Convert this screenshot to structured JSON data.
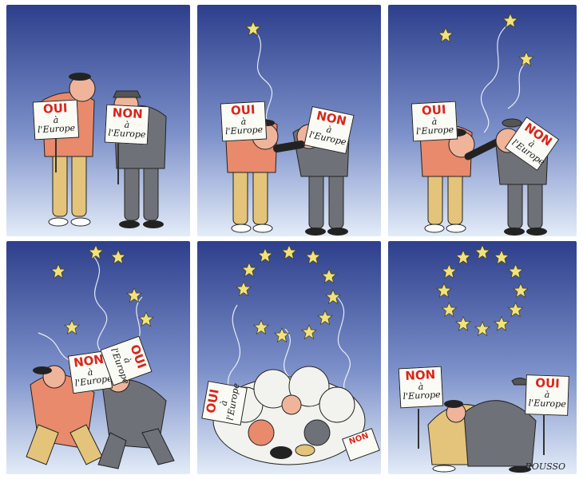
{
  "signs": {
    "oui": {
      "word": "OUI",
      "line1": "à",
      "line2": "l'Europe"
    },
    "non": {
      "word": "NON",
      "line1": "à",
      "line2": "l'Europe"
    }
  },
  "signature": "ROUSSO",
  "colors": {
    "sky_top": "#2d3f8c",
    "sky_bottom": "#dbe6f6",
    "star": "#f1e27a",
    "red_text": "#d8261b",
    "yes_jacket": "#e88a6b",
    "yes_trousers": "#e3c47a",
    "no_suit": "#6e7177"
  }
}
